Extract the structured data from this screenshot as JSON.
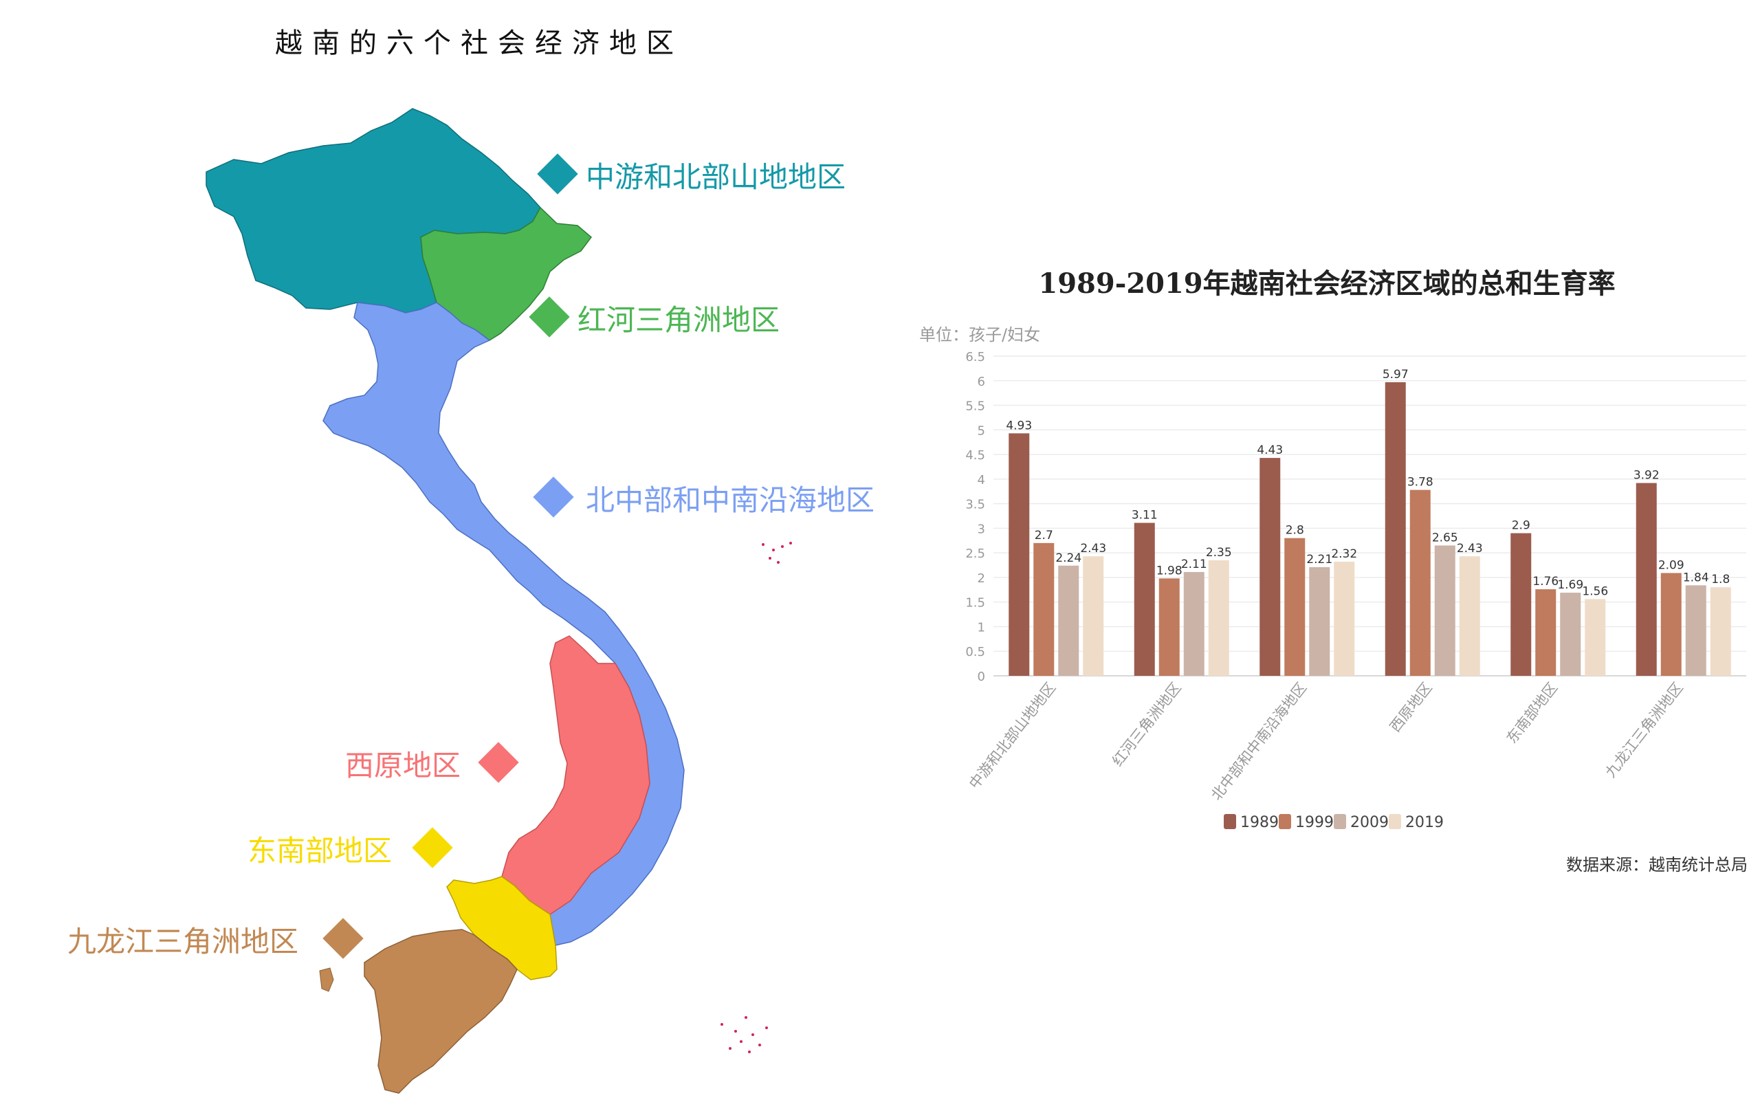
{
  "map": {
    "title": "越南的六个社会经济地区",
    "regions": [
      {
        "key": "northern-midlands",
        "label": "中游和北部山地地区",
        "color": "#1499a8"
      },
      {
        "key": "red-river-delta",
        "label": "红河三角洲地区",
        "color": "#4cb653"
      },
      {
        "key": "north-central-coast",
        "label": "北中部和中南沿海地区",
        "color": "#7b9ff3"
      },
      {
        "key": "central-highlands",
        "label": "西原地区",
        "color": "#f87375"
      },
      {
        "key": "southeast",
        "label": "东南部地区",
        "color": "#f7dc00"
      },
      {
        "key": "mekong-delta",
        "label": "九龙江三角洲地区",
        "color": "#c18853"
      }
    ]
  },
  "chart_data": {
    "type": "bar",
    "title": "1989-2019年越南社会经济区域的总和生育率",
    "ylabel": "单位：孩子/妇女",
    "ylim": [
      0,
      6.5
    ],
    "yticks": [
      "0",
      "0.5",
      "1",
      "1.5",
      "2",
      "2.5",
      "3",
      "3.5",
      "4",
      "4.5",
      "5",
      "5.5",
      "6",
      "6.5"
    ],
    "categories": [
      "中游和北部山地地区",
      "红河三角洲地区",
      "北中部和中南沿海地区",
      "西原地区",
      "东南部地区",
      "九龙江三角洲地区"
    ],
    "series": [
      {
        "name": "1989",
        "color": "#9b5c4e",
        "values": [
          4.93,
          3.11,
          4.43,
          5.97,
          2.9,
          3.92
        ]
      },
      {
        "name": "1999",
        "color": "#c07a5d",
        "values": [
          2.7,
          1.98,
          2.8,
          3.78,
          1.76,
          2.09
        ]
      },
      {
        "name": "2009",
        "color": "#cbb3a7",
        "values": [
          2.24,
          2.11,
          2.21,
          2.65,
          1.69,
          1.84
        ]
      },
      {
        "name": "2019",
        "color": "#efdcc8",
        "values": [
          2.43,
          2.35,
          2.32,
          2.43,
          1.56,
          1.8
        ]
      }
    ],
    "legend": "bottom",
    "grid": true,
    "source": "数据来源：越南统计总局"
  }
}
